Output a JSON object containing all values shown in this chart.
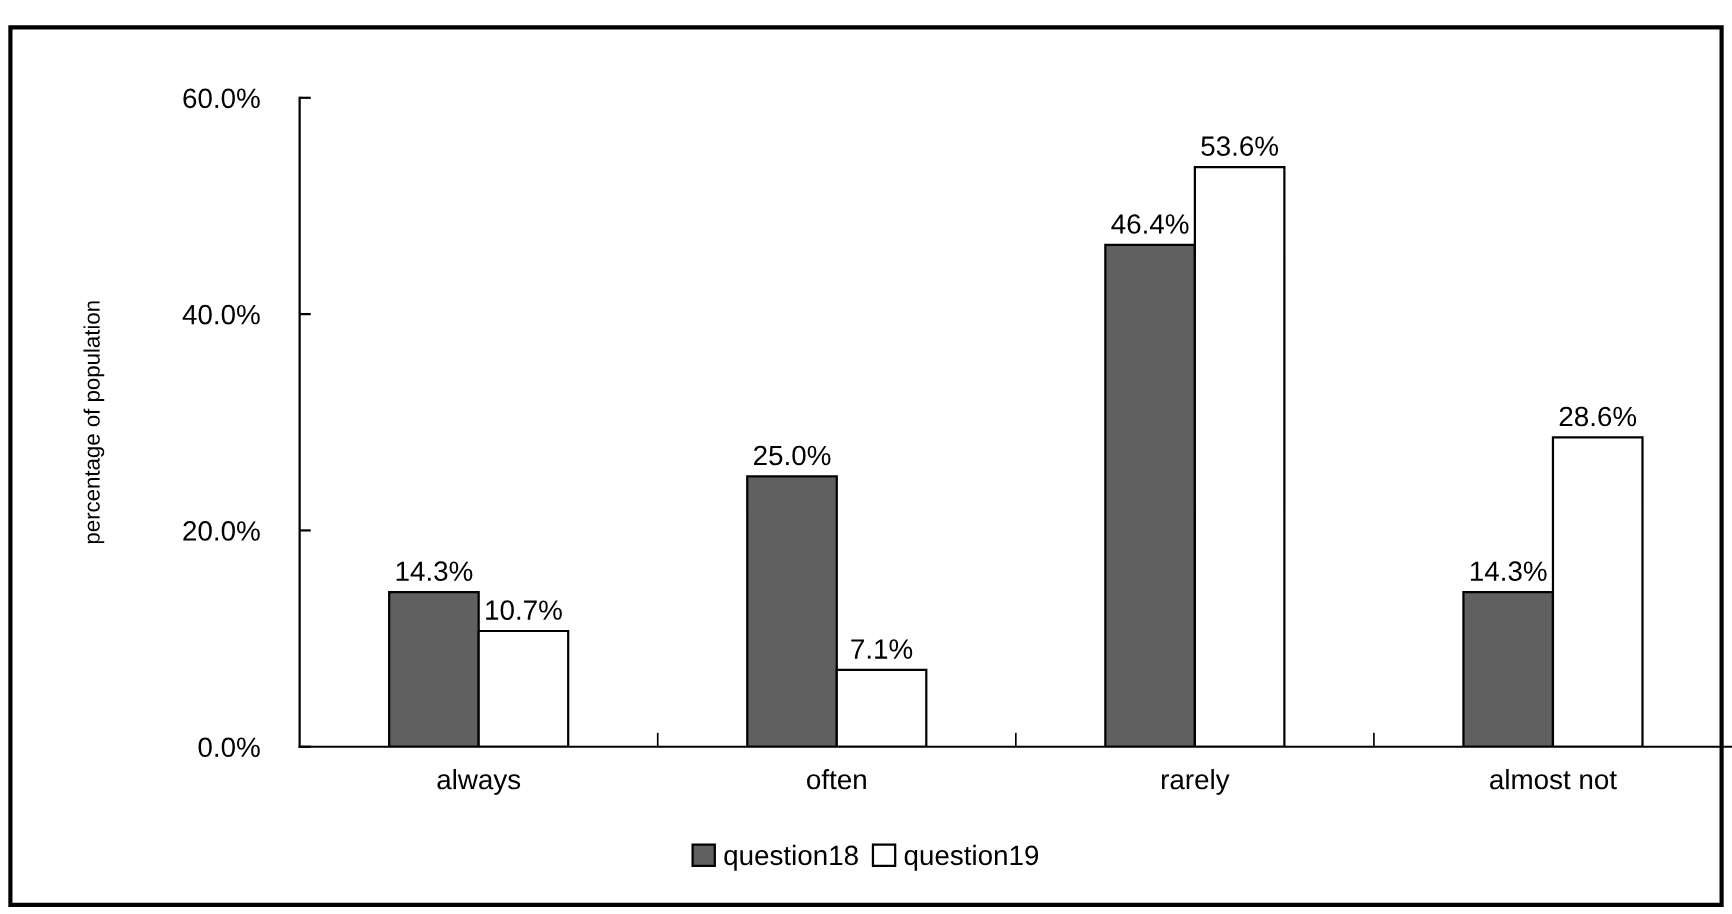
{
  "chart_data": {
    "type": "bar",
    "ylabel": "percentage of population",
    "categories": [
      "always",
      "often",
      "rarely",
      "almost not"
    ],
    "series": [
      {
        "name": "question18",
        "color": "#606060",
        "values": [
          14.3,
          25.0,
          46.4,
          14.3
        ]
      },
      {
        "name": "question19",
        "color": "#ffffff",
        "values": [
          10.7,
          7.1,
          53.6,
          28.6
        ]
      }
    ],
    "ylim": [
      0,
      60
    ],
    "yticks": [
      {
        "value": 0,
        "label": "0.0%"
      },
      {
        "value": 20,
        "label": "20.0%"
      },
      {
        "value": 40,
        "label": "40.0%"
      },
      {
        "value": 60,
        "label": "60.0%"
      }
    ],
    "value_labels": [
      [
        "14.3%",
        "25.0%",
        "46.4%",
        "14.3%"
      ],
      [
        "10.7%",
        "7.1%",
        "53.6%",
        "28.6%"
      ]
    ],
    "grid": false,
    "legend": "bottom"
  }
}
